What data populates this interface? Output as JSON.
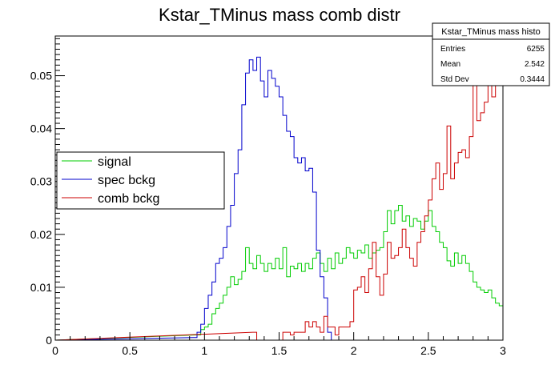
{
  "chart_data": {
    "type": "line",
    "title": "Kstar_TMinus mass comb distr",
    "xlabel": "",
    "ylabel": "",
    "xlim": [
      0,
      3
    ],
    "ylim": [
      0,
      0.0575
    ],
    "x_ticks": [
      0,
      0.5,
      1,
      1.5,
      2,
      2.5,
      3
    ],
    "x_tick_labels": [
      "0",
      "0.5",
      "1",
      "1.5",
      "2",
      "2.5",
      "3"
    ],
    "y_ticks": [
      0,
      0.01,
      0.02,
      0.03,
      0.04,
      0.05
    ],
    "y_tick_labels": [
      "0",
      "0.01",
      "0.02",
      "0.03",
      "0.04",
      "0.05"
    ],
    "bin_width": 0.025,
    "legend_position": "left-middle",
    "stats_box": {
      "title": "Kstar_TMinus mass histo",
      "rows": [
        {
          "label": "Entries",
          "value": "6255"
        },
        {
          "label": "Mean",
          "value": "2.542"
        },
        {
          "label": "Std Dev",
          "value": "0.3444"
        }
      ]
    },
    "series": [
      {
        "name": "signal",
        "color": "#00cc00",
        "x": [
          0.95,
          0.975,
          1.0,
          1.025,
          1.05,
          1.075,
          1.1,
          1.125,
          1.15,
          1.175,
          1.2,
          1.225,
          1.25,
          1.275,
          1.3,
          1.325,
          1.35,
          1.375,
          1.4,
          1.425,
          1.45,
          1.475,
          1.5,
          1.525,
          1.55,
          1.575,
          1.6,
          1.625,
          1.65,
          1.675,
          1.7,
          1.725,
          1.75,
          1.775,
          1.8,
          1.825,
          1.85,
          1.875,
          1.9,
          1.925,
          1.95,
          1.975,
          2.0,
          2.025,
          2.05,
          2.075,
          2.1,
          2.125,
          2.15,
          2.175,
          2.2,
          2.225,
          2.25,
          2.275,
          2.3,
          2.325,
          2.35,
          2.375,
          2.4,
          2.425,
          2.45,
          2.475,
          2.5,
          2.525,
          2.55,
          2.575,
          2.6,
          2.625,
          2.65,
          2.675,
          2.7,
          2.725,
          2.75,
          2.775,
          2.8,
          2.825,
          2.85,
          2.875,
          2.9,
          2.925,
          2.95,
          2.975
        ],
        "values": [
          0.001,
          0.002,
          0.0025,
          0.003,
          0.005,
          0.006,
          0.007,
          0.0085,
          0.01,
          0.012,
          0.0105,
          0.0115,
          0.013,
          0.0175,
          0.0145,
          0.0135,
          0.016,
          0.0145,
          0.013,
          0.0145,
          0.0135,
          0.0155,
          0.0135,
          0.0175,
          0.012,
          0.014,
          0.0135,
          0.0145,
          0.013,
          0.0145,
          0.0135,
          0.0155,
          0.0165,
          0.0145,
          0.013,
          0.0155,
          0.0135,
          0.0165,
          0.0145,
          0.0155,
          0.0175,
          0.0165,
          0.0155,
          0.017,
          0.0165,
          0.018,
          0.0155,
          0.0165,
          0.017,
          0.0175,
          0.0205,
          0.0245,
          0.022,
          0.0245,
          0.0255,
          0.0225,
          0.0235,
          0.0215,
          0.023,
          0.0225,
          0.021,
          0.0225,
          0.0245,
          0.0215,
          0.0205,
          0.0185,
          0.0175,
          0.015,
          0.014,
          0.0165,
          0.0145,
          0.016,
          0.0145,
          0.013,
          0.011,
          0.01,
          0.0095,
          0.009,
          0.0095,
          0.008,
          0.007,
          0.0065
        ]
      },
      {
        "name": "spec bckg",
        "color": "#0000cc",
        "x": [
          0.925,
          0.95,
          0.975,
          1.0,
          1.025,
          1.05,
          1.075,
          1.1,
          1.125,
          1.15,
          1.175,
          1.2,
          1.225,
          1.25,
          1.275,
          1.3,
          1.325,
          1.35,
          1.375,
          1.4,
          1.425,
          1.45,
          1.475,
          1.5,
          1.525,
          1.55,
          1.575,
          1.6,
          1.625,
          1.65,
          1.675,
          1.7,
          1.725,
          1.75,
          1.775,
          1.8,
          1.825,
          1.85
        ],
        "values": [
          0.0005,
          0.0015,
          0.003,
          0.006,
          0.0085,
          0.011,
          0.0145,
          0.0155,
          0.0175,
          0.0215,
          0.0255,
          0.0315,
          0.036,
          0.0445,
          0.0505,
          0.053,
          0.051,
          0.0535,
          0.049,
          0.046,
          0.051,
          0.0495,
          0.048,
          0.046,
          0.0425,
          0.0395,
          0.0385,
          0.0345,
          0.0335,
          0.0345,
          0.032,
          0.0325,
          0.028,
          0.017,
          0.012,
          0.008,
          0.0015,
          0.0
        ]
      },
      {
        "name": "comb bckg",
        "color": "#cc0000",
        "x": [
          1.325,
          1.35,
          1.375,
          1.4,
          1.425,
          1.45,
          1.475,
          1.5,
          1.525,
          1.55,
          1.575,
          1.6,
          1.625,
          1.65,
          1.675,
          1.7,
          1.725,
          1.75,
          1.775,
          1.8,
          1.825,
          1.85,
          1.875,
          1.9,
          1.925,
          1.95,
          1.975,
          2.0,
          2.025,
          2.05,
          2.075,
          2.1,
          2.125,
          2.15,
          2.175,
          2.2,
          2.225,
          2.25,
          2.275,
          2.3,
          2.325,
          2.35,
          2.375,
          2.4,
          2.425,
          2.45,
          2.475,
          2.5,
          2.525,
          2.55,
          2.575,
          2.6,
          2.625,
          2.65,
          2.675,
          2.7,
          2.725,
          2.75,
          2.775,
          2.8,
          2.825,
          2.85,
          2.875,
          2.9,
          2.925,
          2.95,
          2.975
        ],
        "values": [
          0.0015,
          0.0,
          0.0,
          0.0,
          0.0,
          0.0,
          0.0,
          0.0,
          0.0015,
          0.0015,
          0.001,
          0.0015,
          0.0015,
          0.0015,
          0.0035,
          0.0025,
          0.0035,
          0.0025,
          0.0015,
          0.0045,
          0.0025,
          0.0025,
          0.001,
          0.0025,
          0.0025,
          0.0025,
          0.0035,
          0.0095,
          0.01,
          0.012,
          0.009,
          0.0135,
          0.0185,
          0.012,
          0.0085,
          0.0125,
          0.0185,
          0.0155,
          0.016,
          0.0175,
          0.021,
          0.0175,
          0.0155,
          0.014,
          0.0185,
          0.0205,
          0.0235,
          0.0265,
          0.0305,
          0.0335,
          0.0285,
          0.0315,
          0.0405,
          0.0305,
          0.0335,
          0.0355,
          0.036,
          0.0345,
          0.0385,
          0.0485,
          0.0415,
          0.043,
          0.045,
          0.05,
          0.046,
          0.053,
          0.057
        ]
      }
    ]
  }
}
